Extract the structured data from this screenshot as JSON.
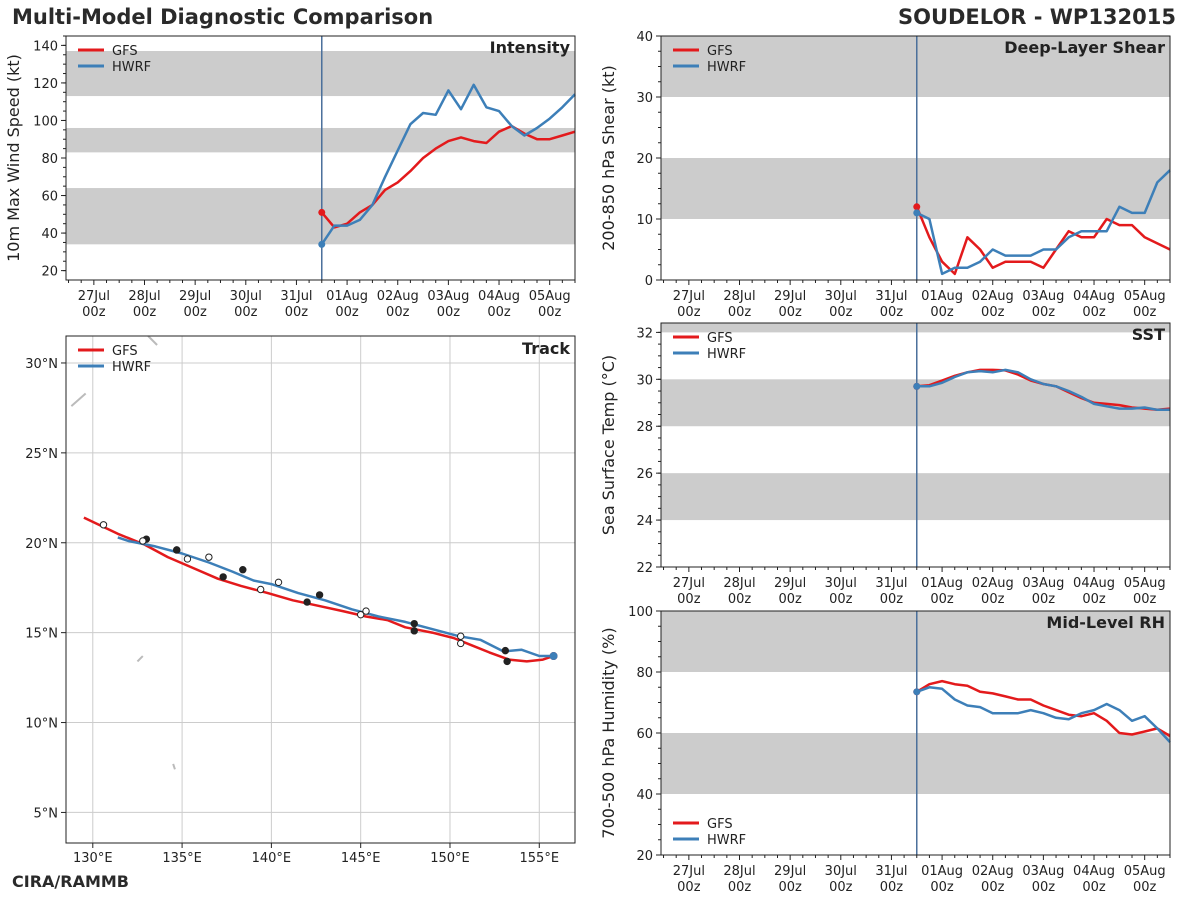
{
  "header": {
    "title_left": "Multi-Model Diagnostic Comparison",
    "title_right": "SOUDELOR - WP132015",
    "footer": "CIRA/RAMMB"
  },
  "colors": {
    "gfs": "#e31a1c",
    "hwrf": "#3d7fb8",
    "band": "#cccccc",
    "init_line": "#4a6f9a",
    "grid": "#cccccc"
  },
  "legend": [
    "GFS",
    "HWRF"
  ],
  "time_axis": {
    "labels": [
      "27Jul\n00z",
      "28Jul\n00z",
      "29Jul\n00z",
      "30Jul\n00z",
      "31Jul\n00z",
      "01Aug\n00z",
      "02Aug\n00z",
      "03Aug\n00z",
      "04Aug\n00z",
      "05Aug\n00z"
    ],
    "tick_days": [
      0,
      1,
      2,
      3,
      4,
      5,
      6,
      7,
      8,
      9
    ],
    "range_days": [
      -0.55,
      9.5
    ],
    "init_day": 4.5
  },
  "chart_data": [
    {
      "id": "intensity",
      "type": "line",
      "title": "Intensity",
      "ylabel": "10m Max Wind Speed (kt)",
      "ylim": [
        15,
        145
      ],
      "yticks": [
        20,
        40,
        60,
        80,
        100,
        120,
        140
      ],
      "bands": [
        [
          34,
          64
        ],
        [
          83,
          96
        ],
        [
          113,
          137
        ]
      ],
      "series": [
        {
          "name": "GFS",
          "x": [
            4.5,
            4.75,
            5,
            5.25,
            5.5,
            5.75,
            6,
            6.25,
            6.5,
            6.75,
            7,
            7.25,
            7.5,
            7.75,
            8,
            8.25,
            8.5,
            8.75,
            9,
            9.25,
            9.5
          ],
          "y": [
            51,
            43,
            45,
            51,
            55,
            63,
            67,
            73,
            80,
            85,
            89,
            91,
            89,
            88,
            94,
            97,
            93,
            90,
            90,
            92,
            94
          ]
        },
        {
          "name": "HWRF",
          "x": [
            4.5,
            4.75,
            5,
            5.25,
            5.5,
            5.75,
            6,
            6.25,
            6.5,
            6.75,
            7,
            7.25,
            7.5,
            7.75,
            8,
            8.25,
            8.5,
            8.75,
            9,
            9.25,
            9.5
          ],
          "y": [
            34,
            44,
            44,
            47,
            55,
            70,
            84,
            98,
            104,
            103,
            116,
            106,
            119,
            107,
            105,
            97,
            92,
            96,
            101,
            107,
            114
          ]
        }
      ]
    },
    {
      "id": "shear",
      "type": "line",
      "title": "Deep-Layer Shear",
      "ylabel": "200-850 hPa Shear (kt)",
      "ylim": [
        0,
        40
      ],
      "yticks": [
        0,
        10,
        20,
        30,
        40
      ],
      "bands": [
        [
          10,
          20
        ],
        [
          30,
          40
        ]
      ],
      "series": [
        {
          "name": "GFS",
          "x": [
            4.5,
            4.75,
            5,
            5.25,
            5.5,
            5.75,
            6,
            6.25,
            6.5,
            6.75,
            7,
            7.25,
            7.5,
            7.75,
            8,
            8.25,
            8.5,
            8.75,
            9,
            9.25,
            9.5
          ],
          "y": [
            12,
            7,
            3,
            1,
            7,
            5,
            2,
            3,
            3,
            3,
            2,
            5,
            8,
            7,
            7,
            10,
            9,
            9,
            7,
            6,
            5
          ]
        },
        {
          "name": "HWRF",
          "x": [
            4.5,
            4.75,
            5,
            5.25,
            5.5,
            5.75,
            6,
            6.25,
            6.5,
            6.75,
            7,
            7.25,
            7.5,
            7.75,
            8,
            8.25,
            8.5,
            8.75,
            9,
            9.25,
            9.5
          ],
          "y": [
            11,
            10,
            1,
            2,
            2,
            3,
            5,
            4,
            4,
            4,
            5,
            5,
            7,
            8,
            8,
            8,
            12,
            11,
            11,
            16,
            18
          ]
        }
      ]
    },
    {
      "id": "sst",
      "type": "line",
      "title": "SST",
      "ylabel": "Sea Surface Temp (°C)",
      "ylim": [
        22,
        32.4
      ],
      "yticks": [
        22,
        24,
        26,
        28,
        30,
        32
      ],
      "bands": [
        [
          24,
          26
        ],
        [
          28,
          30
        ],
        [
          32,
          32.4
        ]
      ],
      "series": [
        {
          "name": "GFS",
          "x": [
            4.5,
            4.75,
            5,
            5.25,
            5.5,
            5.75,
            6,
            6.25,
            6.5,
            6.75,
            7,
            7.25,
            7.5,
            7.75,
            8,
            8.25,
            8.5,
            8.75,
            9,
            9.25,
            9.5
          ],
          "y": [
            29.7,
            29.75,
            29.95,
            30.15,
            30.3,
            30.4,
            30.4,
            30.38,
            30.2,
            29.95,
            29.8,
            29.7,
            29.45,
            29.2,
            29.0,
            28.95,
            28.9,
            28.8,
            28.75,
            28.7,
            28.75
          ]
        },
        {
          "name": "HWRF",
          "x": [
            4.5,
            4.75,
            5,
            5.25,
            5.5,
            5.75,
            6,
            6.25,
            6.5,
            6.75,
            7,
            7.25,
            7.5,
            7.75,
            8,
            8.25,
            8.5,
            8.75,
            9,
            9.25,
            9.5
          ],
          "y": [
            29.7,
            29.7,
            29.85,
            30.1,
            30.3,
            30.35,
            30.3,
            30.4,
            30.3,
            30.0,
            29.8,
            29.7,
            29.5,
            29.25,
            28.95,
            28.85,
            28.75,
            28.75,
            28.8,
            28.7,
            28.7
          ]
        }
      ]
    },
    {
      "id": "rh",
      "type": "line",
      "title": "Mid-Level RH",
      "ylabel": "700-500 hPa Humidity (%)",
      "ylim": [
        20,
        100
      ],
      "yticks": [
        20,
        40,
        60,
        80,
        100
      ],
      "bands": [
        [
          40,
          60
        ],
        [
          80,
          100
        ]
      ],
      "series": [
        {
          "name": "GFS",
          "x": [
            4.5,
            4.75,
            5,
            5.25,
            5.5,
            5.75,
            6,
            6.25,
            6.5,
            6.75,
            7,
            7.25,
            7.5,
            7.75,
            8,
            8.25,
            8.5,
            8.75,
            9,
            9.25,
            9.5
          ],
          "y": [
            73.5,
            76,
            77,
            76,
            75.5,
            73.5,
            73,
            72,
            71,
            71,
            69,
            67.5,
            66,
            65.5,
            66.5,
            64,
            60,
            59.5,
            60.5,
            61.5,
            59
          ]
        },
        {
          "name": "HWRF",
          "x": [
            4.5,
            4.75,
            5,
            5.25,
            5.5,
            5.75,
            6,
            6.25,
            6.5,
            6.75,
            7,
            7.25,
            7.5,
            7.75,
            8,
            8.25,
            8.5,
            8.75,
            9,
            9.25,
            9.5
          ],
          "y": [
            73.5,
            75,
            74.5,
            71,
            69,
            68.5,
            66.5,
            66.5,
            66.5,
            67.5,
            66.5,
            65,
            64.5,
            66.5,
            67.5,
            69.5,
            67.5,
            64,
            65.5,
            61.5,
            57
          ]
        }
      ]
    },
    {
      "id": "track",
      "type": "line",
      "title": "Track",
      "xlabel_ticks": [
        "130°E",
        "135°E",
        "140°E",
        "145°E",
        "150°E",
        "155°E"
      ],
      "xticks": [
        130,
        135,
        140,
        145,
        150,
        155
      ],
      "xlim": [
        128.5,
        157
      ],
      "ylabel_ticks": [
        "5°N",
        "10°N",
        "15°N",
        "20°N",
        "25°N",
        "30°N"
      ],
      "yticks": [
        5,
        10,
        15,
        20,
        25,
        30
      ],
      "ylim": [
        3.3,
        31.5
      ],
      "series": [
        {
          "name": "GFS",
          "lon": [
            155.8,
            155.2,
            154.3,
            153.3,
            152.2,
            151.2,
            150.2,
            149,
            147.5,
            146.5,
            145.3,
            144,
            142.6,
            141.2,
            139.8,
            138.3,
            137,
            135.6,
            134.2,
            132.9,
            131.4,
            129.5
          ],
          "lat": [
            13.7,
            13.5,
            13.4,
            13.5,
            13.9,
            14.3,
            14.7,
            15.0,
            15.3,
            15.7,
            15.9,
            16.2,
            16.5,
            16.8,
            17.2,
            17.6,
            18.0,
            18.6,
            19.2,
            19.9,
            20.5,
            21.4
          ],
          "markers_lon": [
            153.2,
            150.6,
            148,
            145,
            142,
            139.4,
            137.3,
            135.3,
            134.7,
            133,
            130.6
          ],
          "markers_lat": [
            13.4,
            14.4,
            15.1,
            16.0,
            16.7,
            17.4,
            18.1,
            19.1,
            19.6,
            20.2,
            21.0
          ],
          "markers_filled": [
            true,
            false,
            true,
            false,
            true,
            false,
            true,
            false,
            true,
            true,
            false
          ]
        },
        {
          "name": "HWRF",
          "lon": [
            155.8,
            155,
            154,
            153,
            151.7,
            150.5,
            149,
            147.5,
            146,
            144.5,
            143,
            141.5,
            140,
            139,
            137.8,
            136.5,
            135,
            133.5,
            132,
            131.4
          ],
          "lat": [
            13.7,
            13.7,
            14.05,
            13.95,
            14.6,
            14.8,
            15.2,
            15.6,
            15.9,
            16.3,
            16.8,
            17.2,
            17.7,
            17.9,
            18.4,
            18.9,
            19.4,
            19.8,
            20.1,
            20.3
          ],
          "markers_lon": [
            153.1,
            150.6,
            148,
            145.3,
            142.7,
            140.4,
            138.4,
            136.5,
            134.7,
            132.8
          ],
          "markers_lat": [
            14.0,
            14.8,
            15.5,
            16.2,
            17.1,
            17.8,
            18.5,
            19.2,
            19.6,
            20.1
          ],
          "markers_filled": [
            true,
            false,
            true,
            false,
            true,
            false,
            true,
            false,
            true,
            false
          ]
        }
      ]
    }
  ]
}
